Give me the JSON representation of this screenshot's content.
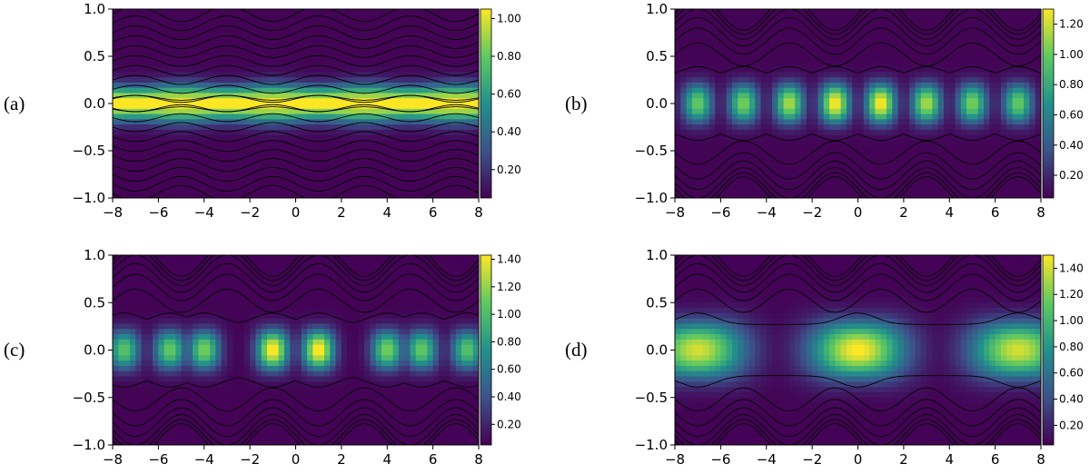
{
  "chart_data": [
    {
      "type": "heatmap",
      "panel_label": "(a)",
      "x_ticks": [
        "−8",
        "−6",
        "−4",
        "−2",
        "0",
        "2",
        "4",
        "6",
        "8"
      ],
      "y_ticks": [
        "1.0",
        "0.5",
        "0.0",
        "−0.5",
        "−1.0"
      ],
      "xlim": [
        -8,
        8
      ],
      "ylim": [
        -1,
        1
      ],
      "colorbar_ticks": [
        "1.00",
        "0.80",
        "0.60",
        "0.40",
        "0.20"
      ],
      "colorbar_range": [
        0.05,
        1.05
      ],
      "colorbar_tick_values": [
        1.0,
        0.8,
        0.6,
        0.4,
        0.2
      ],
      "colormap": [
        "#440154",
        "#3b528b",
        "#21918c",
        "#5ec962",
        "#fde725"
      ],
      "pattern": "horizontal band of high intensity near y=0, wavy contour lines with period 2 in x"
    },
    {
      "type": "heatmap",
      "panel_label": "(b)",
      "x_ticks": [
        "−8",
        "−6",
        "−4",
        "−2",
        "0",
        "2",
        "4",
        "6",
        "8"
      ],
      "y_ticks": [
        "1.0",
        "0.5",
        "0.0",
        "−0.5",
        "−1.0"
      ],
      "xlim": [
        -8,
        8
      ],
      "ylim": [
        -1,
        1
      ],
      "colorbar_ticks": [
        "1.20",
        "1.00",
        "0.80",
        "0.60",
        "0.40",
        "0.20"
      ],
      "colorbar_range": [
        0.05,
        1.3
      ],
      "colorbar_tick_values": [
        1.2,
        1.0,
        0.8,
        0.6,
        0.4,
        0.2
      ],
      "colormap": [
        "#440154",
        "#3b528b",
        "#21918c",
        "#5ec962",
        "#fde725"
      ],
      "blob_centers_x": [
        -7,
        -5,
        -3,
        -1,
        1,
        3,
        5,
        7
      ],
      "peak_values": [
        0.95,
        1.0,
        1.1,
        1.27,
        1.27,
        1.1,
        1.0,
        0.95
      ]
    },
    {
      "type": "heatmap",
      "panel_label": "(c)",
      "x_ticks": [
        "−8",
        "−6",
        "−4",
        "−2",
        "0",
        "2",
        "4",
        "6",
        "8"
      ],
      "y_ticks": [
        "1.0",
        "0.5",
        "0.0",
        "−0.5",
        "−1.0"
      ],
      "xlim": [
        -8,
        8
      ],
      "ylim": [
        -1,
        1
      ],
      "colorbar_ticks": [
        "1.40",
        "1.20",
        "1.00",
        "0.80",
        "0.60",
        "0.40",
        "0.20"
      ],
      "colorbar_range": [
        0.05,
        1.43
      ],
      "colorbar_tick_values": [
        1.4,
        1.2,
        1.0,
        0.8,
        0.6,
        0.4,
        0.2
      ],
      "colormap": [
        "#440154",
        "#3b528b",
        "#21918c",
        "#5ec962",
        "#fde725"
      ],
      "blob_centers_x": [
        -7.5,
        -5.5,
        -4,
        -1,
        1,
        4,
        5.5,
        7.5
      ],
      "peak_values": [
        1.0,
        1.05,
        1.1,
        1.42,
        1.42,
        1.1,
        1.05,
        1.0
      ]
    },
    {
      "type": "heatmap",
      "panel_label": "(d)",
      "x_ticks": [
        "−8",
        "−6",
        "−4",
        "−2",
        "0",
        "2",
        "4",
        "6",
        "8"
      ],
      "y_ticks": [
        "1.0",
        "0.5",
        "0.0",
        "−0.5",
        "−1.0"
      ],
      "xlim": [
        -8,
        8
      ],
      "ylim": [
        -1,
        1
      ],
      "colorbar_ticks": [
        "1.40",
        "1.20",
        "1.00",
        "0.80",
        "0.60",
        "0.40",
        "0.20"
      ],
      "colorbar_range": [
        0.05,
        1.5
      ],
      "colorbar_tick_values": [
        1.4,
        1.2,
        1.0,
        0.8,
        0.6,
        0.4,
        0.2
      ],
      "colormap": [
        "#440154",
        "#3b528b",
        "#21918c",
        "#5ec962",
        "#fde725"
      ],
      "blob_centers_x": [
        -7,
        0,
        7
      ],
      "peak_values": [
        1.35,
        1.45,
        1.35
      ]
    }
  ]
}
